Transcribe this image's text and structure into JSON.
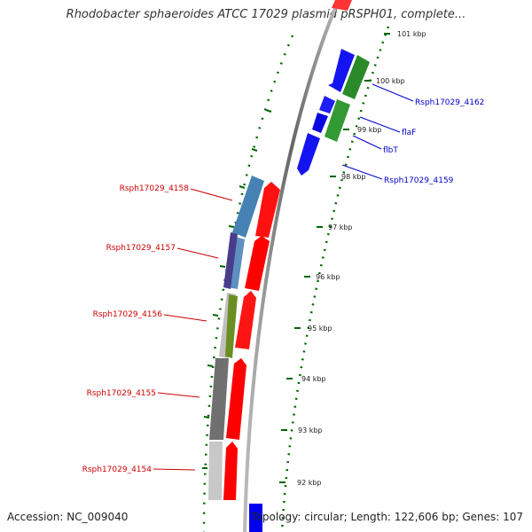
{
  "title": "Rhodobacter sphaeroides ATCC 17029 plasmid pRSPH01, complete...",
  "footer": {
    "accession": "Accession: NC_009040",
    "topology": "Topology: circular; Length: 122,606 bp; Genes: 107"
  },
  "colors": {
    "forward_gene": "#ff0000",
    "reverse_gene": "#0000ee",
    "ruler_dots": "#006600",
    "label_forward": "#cc0000",
    "label_reverse": "#0000cc",
    "backbone": "#888888"
  },
  "tick_labels": [
    "101 kbp",
    "100 kbp",
    "99 kbp",
    "98 kbp",
    "97 kbp",
    "96 kbp",
    "95 kbp",
    "94 kbp",
    "93 kbp",
    "92 kbp"
  ],
  "gene_labels": {
    "right": [
      "Rsph17029_4162",
      "flaF",
      "flbT",
      "Rsph17029_4159"
    ],
    "left": [
      "Rsph17029_4158",
      "Rsph17029_4157",
      "Rsph17029_4156",
      "Rsph17029_4155",
      "Rsph17029_4154"
    ]
  }
}
